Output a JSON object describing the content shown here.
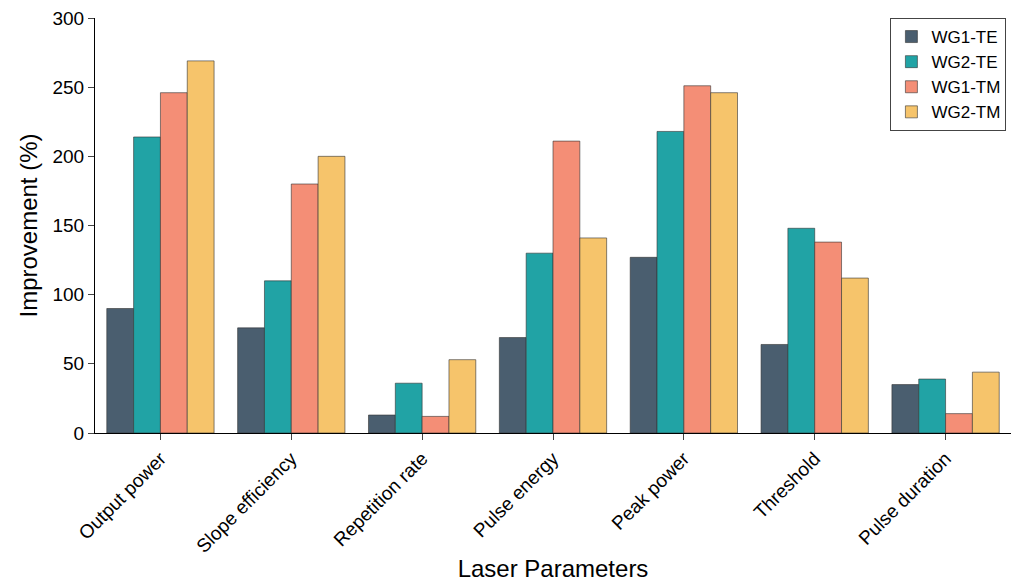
{
  "chart_data": {
    "type": "bar",
    "xlabel": "Laser Parameters",
    "ylabel": "Improvement (%)",
    "categories": [
      "Output power",
      "Slope efficiency",
      "Repetition rate",
      "Pulse energy",
      "Peak power",
      "Threshold",
      "Pulse duration"
    ],
    "series": [
      {
        "name": "WG1-TE",
        "color": "#4a5e6f",
        "values": [
          90,
          76,
          13,
          69,
          127,
          64,
          35
        ]
      },
      {
        "name": "WG2-TE",
        "color": "#21a3a5",
        "values": [
          214,
          110,
          36,
          130,
          218,
          148,
          39
        ]
      },
      {
        "name": "WG1-TM",
        "color": "#f48e76",
        "values": [
          246,
          180,
          12,
          211,
          251,
          138,
          14
        ]
      },
      {
        "name": "WG2-TM",
        "color": "#f6c46b",
        "values": [
          269,
          200,
          53,
          141,
          246,
          112,
          44
        ]
      }
    ],
    "ylim": [
      0,
      300
    ],
    "yticks": [
      0,
      50,
      100,
      150,
      200,
      250,
      300
    ],
    "grid": false,
    "legend": "top right"
  }
}
